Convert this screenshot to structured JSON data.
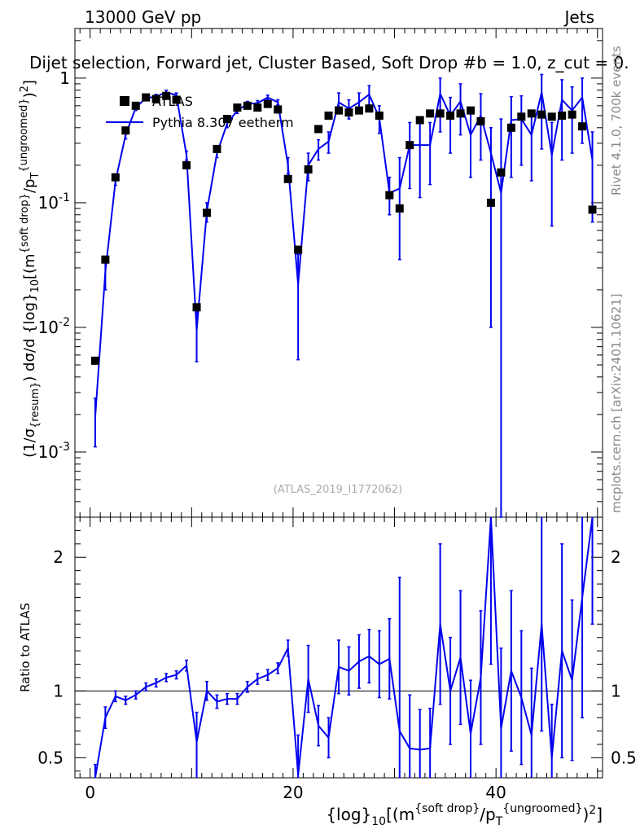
{
  "header": {
    "energy": "13000 GeV pp",
    "category": "Jets",
    "title": "Dijet selection, Forward jet, Cluster Based, Soft Drop #b = 1.0, z_cut = 0.",
    "watermark": "(ATLAS_2019_I1772062)",
    "side_rivet": "Rivet 4.1.0,  700k events",
    "side_mcplots": "mcplots.cern.ch [arXiv:2401.10621]"
  },
  "colors": {
    "data": "#000000",
    "mc": "#0000ee"
  },
  "chart_data": [
    {
      "type": "scatter",
      "panel": "main",
      "yscale": "log",
      "ylabel": "(1/σ_{resum}) dσ/d {log}_{10}[(m^{soft drop}/p_T^{ungroomed})^2]",
      "xlabel": "{log}_{10}[(m^{soft drop}/p_T^{ungroomed})^2]",
      "xlim": [
        -1.5,
        50.5
      ],
      "ylim": [
        0.0003,
        2.5
      ],
      "xticks": [
        0,
        20,
        40
      ],
      "yticks": [
        {
          "value": 0.001,
          "label": "10^{-3}"
        },
        {
          "value": 0.01,
          "label": "10^{-2}"
        },
        {
          "value": 0.1,
          "label": "10^{-1}"
        },
        {
          "value": 1,
          "label": "1"
        }
      ],
      "legend": [
        {
          "label": "ATLAS",
          "style": "marker"
        },
        {
          "label": "Pythia 8.307 eetherm",
          "style": "line"
        }
      ],
      "x": [
        0.5,
        1.5,
        2.5,
        3.5,
        4.5,
        5.5,
        6.5,
        7.5,
        8.5,
        9.5,
        10.5,
        11.5,
        12.5,
        13.5,
        14.5,
        15.5,
        16.5,
        17.5,
        18.5,
        19.5,
        20.5,
        21.5,
        22.5,
        23.5,
        24.5,
        25.5,
        26.5,
        27.5,
        28.5,
        29.5,
        30.5,
        31.5,
        32.5,
        33.5,
        34.5,
        35.5,
        36.5,
        37.5,
        38.5,
        39.5,
        40.5,
        41.5,
        42.5,
        43.5,
        44.5,
        45.5,
        46.5,
        47.5,
        48.5,
        49.5
      ],
      "series": [
        {
          "name": "ATLAS",
          "values": [
            0.0054,
            0.035,
            0.16,
            0.38,
            0.6,
            0.7,
            0.68,
            0.72,
            0.67,
            0.2,
            0.0145,
            0.083,
            0.27,
            0.47,
            0.58,
            0.6,
            0.58,
            0.62,
            0.56,
            0.155,
            0.042,
            0.185,
            0.39,
            0.5,
            0.55,
            0.53,
            0.55,
            0.57,
            0.5,
            0.115,
            0.09,
            0.29,
            0.46,
            0.52,
            0.52,
            0.5,
            0.52,
            0.55,
            0.45,
            0.1,
            0.175,
            0.4,
            0.49,
            0.52,
            0.51,
            0.49,
            0.5,
            0.51,
            0.41,
            0.088
          ]
        },
        {
          "name": "Pythia 8.307 eetherm",
          "values": [
            0.0019,
            0.028,
            0.15,
            0.35,
            0.58,
            0.69,
            0.71,
            0.77,
            0.73,
            0.24,
            0.0095,
            0.085,
            0.25,
            0.43,
            0.55,
            0.62,
            0.63,
            0.7,
            0.64,
            0.2,
            0.022,
            0.2,
            0.27,
            0.31,
            0.64,
            0.57,
            0.64,
            0.74,
            0.48,
            0.12,
            0.13,
            0.29,
            0.29,
            0.29,
            0.75,
            0.5,
            0.65,
            0.35,
            0.5,
            0.25,
            0.12,
            0.46,
            0.47,
            0.35,
            0.77,
            0.24,
            0.67,
            0.55,
            0.7,
            0.22
          ],
          "err_low": [
            0.0008,
            0.008,
            0.012,
            0.025,
            0.03,
            0.03,
            0.03,
            0.03,
            0.03,
            0.02,
            0.0042,
            0.015,
            0.02,
            0.03,
            0.03,
            0.03,
            0.03,
            0.03,
            0.03,
            0.03,
            0.0165,
            0.05,
            0.05,
            0.06,
            0.12,
            0.1,
            0.12,
            0.13,
            0.12,
            0.04,
            0.095,
            0.16,
            0.18,
            0.15,
            0.38,
            0.25,
            0.3,
            0.19,
            0.28,
            0.24,
            0.12,
            0.3,
            0.27,
            0.2,
            0.5,
            0.175,
            0.45,
            0.3,
            0.4,
            0.15
          ],
          "err_high": [
            0.0008,
            0.008,
            0.012,
            0.025,
            0.03,
            0.03,
            0.03,
            0.03,
            0.03,
            0.02,
            0.005,
            0.015,
            0.02,
            0.03,
            0.03,
            0.03,
            0.03,
            0.03,
            0.03,
            0.03,
            0.0165,
            0.05,
            0.05,
            0.06,
            0.12,
            0.1,
            0.12,
            0.13,
            0.12,
            0.04,
            0.1,
            0.15,
            0.18,
            0.15,
            0.25,
            0.2,
            0.25,
            0.19,
            0.25,
            0.15,
            0.35,
            0.25,
            0.25,
            0.2,
            0.3,
            0.2,
            0.3,
            0.3,
            0.3,
            0.15
          ]
        }
      ]
    },
    {
      "type": "line",
      "panel": "ratio",
      "ylabel": "Ratio to ATLAS",
      "xlabel": "{log}_{10}[(m^{soft drop}/p_T^{ungroomed})^2]",
      "xlim": [
        -1.5,
        50.5
      ],
      "ylim": [
        0.35,
        2.3
      ],
      "xticks": [
        0,
        20,
        40
      ],
      "yticks": [
        0.5,
        1,
        2
      ],
      "reference": 1,
      "x": [
        0.5,
        1.5,
        2.5,
        3.5,
        4.5,
        5.5,
        6.5,
        7.5,
        8.5,
        9.5,
        10.5,
        11.5,
        12.5,
        13.5,
        14.5,
        15.5,
        16.5,
        17.5,
        18.5,
        19.5,
        20.5,
        21.5,
        22.5,
        23.5,
        24.5,
        25.5,
        26.5,
        27.5,
        28.5,
        29.5,
        30.5,
        31.5,
        32.5,
        33.5,
        34.5,
        35.5,
        36.5,
        37.5,
        38.5,
        39.5,
        40.5,
        41.5,
        42.5,
        43.5,
        44.5,
        45.5,
        46.5,
        47.5,
        48.5,
        49.5
      ],
      "series": [
        {
          "name": "Pythia 8.307 eetherm / ATLAS",
          "values": [
            0.35,
            0.8,
            0.96,
            0.93,
            0.97,
            1.03,
            1.06,
            1.1,
            1.12,
            1.19,
            0.62,
            1.0,
            0.92,
            0.94,
            0.94,
            1.03,
            1.09,
            1.12,
            1.17,
            1.32,
            0.37,
            1.09,
            0.74,
            0.65,
            1.18,
            1.15,
            1.22,
            1.26,
            1.2,
            1.24,
            0.7,
            0.57,
            0.56,
            0.57,
            1.5,
            1.0,
            1.25,
            0.68,
            1.1,
            2.4,
            0.72,
            1.15,
            0.95,
            0.67,
            1.5,
            0.5,
            1.3,
            1.08,
            1.7,
            2.5
          ],
          "err_low": [
            0.1,
            0.08,
            0.04,
            0.03,
            0.03,
            0.03,
            0.03,
            0.03,
            0.03,
            0.04,
            0.3,
            0.07,
            0.05,
            0.04,
            0.04,
            0.04,
            0.04,
            0.04,
            0.04,
            0.06,
            0.3,
            0.25,
            0.15,
            0.15,
            0.2,
            0.18,
            0.2,
            0.2,
            0.25,
            0.3,
            0.5,
            0.4,
            0.3,
            0.3,
            0.6,
            0.4,
            0.5,
            0.4,
            0.5,
            1.2,
            0.6,
            0.6,
            0.5,
            0.5,
            0.8,
            0.4,
            0.8,
            0.6,
            0.9,
            1.0
          ],
          "err_high": [
            0.1,
            0.08,
            0.04,
            0.03,
            0.03,
            0.03,
            0.03,
            0.03,
            0.03,
            0.04,
            0.22,
            0.07,
            0.05,
            0.04,
            0.04,
            0.04,
            0.04,
            0.04,
            0.04,
            0.06,
            0.3,
            0.25,
            0.15,
            0.15,
            0.2,
            0.18,
            0.2,
            0.2,
            0.25,
            0.3,
            1.15,
            0.4,
            0.3,
            0.3,
            0.6,
            0.4,
            0.5,
            0.4,
            0.5,
            0.5,
            0.6,
            0.6,
            0.5,
            0.5,
            0.8,
            0.4,
            0.8,
            0.6,
            0.9,
            1.0
          ]
        }
      ]
    }
  ]
}
